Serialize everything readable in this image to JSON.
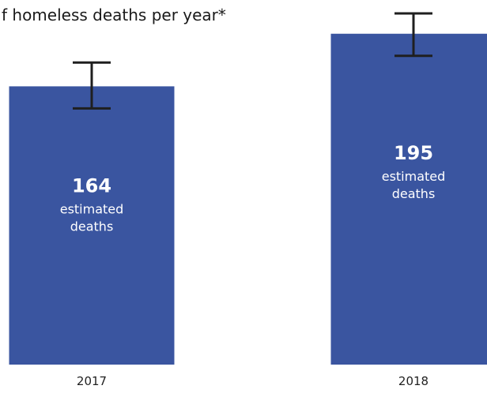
{
  "chart_data": {
    "type": "bar",
    "title": "f homeless deaths per year*",
    "xlabel": "",
    "ylabel": "",
    "categories": [
      "2017",
      "2018"
    ],
    "values": [
      164,
      195
    ],
    "error_bars": [
      {
        "low": 151,
        "high": 178
      },
      {
        "low": 182,
        "high": 207
      }
    ],
    "value_labels": [
      "164",
      "195"
    ],
    "value_caption": [
      "estimated",
      "deaths"
    ],
    "grid": false,
    "legend": "none",
    "colors": {
      "bar": "#3a55a0",
      "error_bar": "#1f1f1f",
      "bar_text": "#ffffff",
      "tick_text": "#222222",
      "title_text": "#1a1a1a"
    }
  }
}
